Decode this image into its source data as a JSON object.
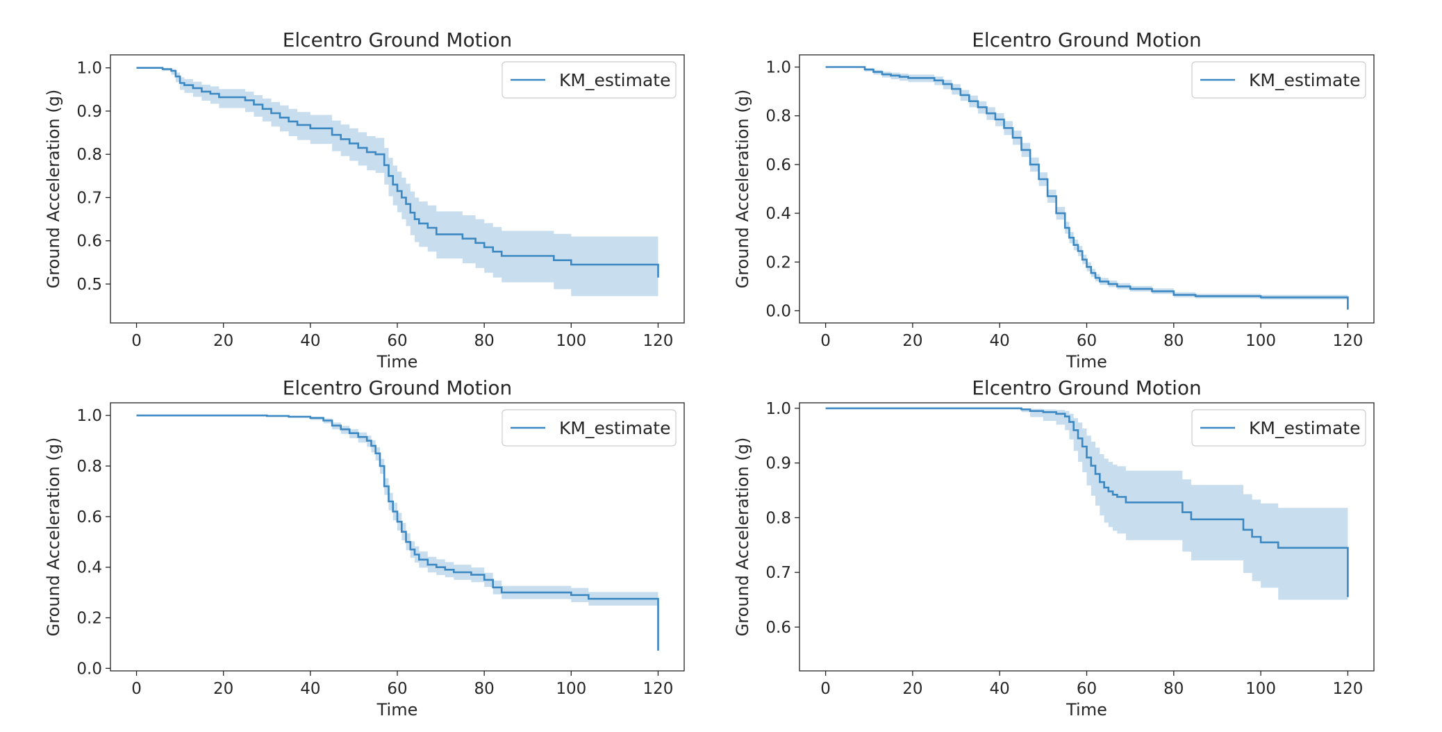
{
  "colors": {
    "line": "#3a87c1",
    "band": "#3a87c1",
    "axes": "#222222",
    "text": "#262626"
  },
  "chart_data": [
    {
      "type": "line",
      "title": "Elcentro Ground Motion",
      "xlabel": "Time",
      "ylabel": "Ground Acceleration (g)",
      "xlim": [
        -6,
        126
      ],
      "ylim": [
        0.41,
        1.03
      ],
      "xticks": [
        0,
        20,
        40,
        60,
        80,
        100,
        120
      ],
      "xtick_labels": [
        "0",
        "20",
        "40",
        "60",
        "80",
        "100",
        "120"
      ],
      "yticks": [
        0.5,
        0.6,
        0.7,
        0.8,
        0.9,
        1.0
      ],
      "ytick_labels": [
        "0.5",
        "0.6",
        "0.7",
        "0.8",
        "0.9",
        "1.0"
      ],
      "legend": {
        "position": "upper right",
        "entries": [
          "KM_estimate"
        ]
      },
      "series": [
        {
          "name": "KM_estimate",
          "step": true,
          "x": [
            0,
            6,
            8,
            9,
            10,
            11,
            13,
            15,
            17,
            19,
            25,
            27,
            29,
            31,
            33,
            35,
            37,
            40,
            45,
            47,
            49,
            51,
            53,
            55,
            57,
            58,
            59,
            60,
            61,
            62,
            63,
            64,
            65,
            67,
            69,
            75,
            78,
            80,
            82,
            84,
            96,
            100,
            120
          ],
          "y": [
            1.0,
            0.997,
            0.993,
            0.98,
            0.965,
            0.96,
            0.953,
            0.945,
            0.94,
            0.932,
            0.925,
            0.915,
            0.905,
            0.895,
            0.885,
            0.876,
            0.868,
            0.86,
            0.845,
            0.835,
            0.825,
            0.815,
            0.805,
            0.8,
            0.775,
            0.75,
            0.73,
            0.715,
            0.7,
            0.685,
            0.665,
            0.65,
            0.64,
            0.63,
            0.615,
            0.605,
            0.595,
            0.585,
            0.575,
            0.565,
            0.555,
            0.545,
            0.515
          ],
          "ci_lower": [
            1.0,
            0.993,
            0.984,
            0.967,
            0.949,
            0.942,
            0.933,
            0.924,
            0.917,
            0.907,
            0.898,
            0.887,
            0.876,
            0.864,
            0.853,
            0.842,
            0.833,
            0.824,
            0.807,
            0.796,
            0.785,
            0.774,
            0.763,
            0.757,
            0.73,
            0.703,
            0.682,
            0.666,
            0.65,
            0.634,
            0.613,
            0.597,
            0.586,
            0.575,
            0.559,
            0.548,
            0.537,
            0.526,
            0.515,
            0.504,
            0.488,
            0.472,
            0.44
          ],
          "ci_upper": [
            1.0,
            0.999,
            0.997,
            0.989,
            0.978,
            0.974,
            0.968,
            0.961,
            0.957,
            0.951,
            0.945,
            0.937,
            0.929,
            0.921,
            0.913,
            0.905,
            0.898,
            0.891,
            0.878,
            0.869,
            0.86,
            0.851,
            0.842,
            0.838,
            0.815,
            0.792,
            0.774,
            0.76,
            0.746,
            0.732,
            0.714,
            0.7,
            0.691,
            0.682,
            0.668,
            0.659,
            0.65,
            0.641,
            0.632,
            0.623,
            0.616,
            0.61,
            0.6
          ]
        }
      ]
    },
    {
      "type": "line",
      "title": "Elcentro Ground Motion",
      "xlabel": "Time",
      "ylabel": "Ground Acceleration (g)",
      "xlim": [
        -6,
        126
      ],
      "ylim": [
        -0.05,
        1.05
      ],
      "xticks": [
        0,
        20,
        40,
        60,
        80,
        100,
        120
      ],
      "xtick_labels": [
        "0",
        "20",
        "40",
        "60",
        "80",
        "100",
        "120"
      ],
      "yticks": [
        0.0,
        0.2,
        0.4,
        0.6,
        0.8,
        1.0
      ],
      "ytick_labels": [
        "0.0",
        "0.2",
        "0.4",
        "0.6",
        "0.8",
        "1.0"
      ],
      "legend": {
        "position": "upper right",
        "entries": [
          "KM_estimate"
        ]
      },
      "series": [
        {
          "name": "KM_estimate",
          "step": true,
          "x": [
            0,
            9,
            11,
            13,
            15,
            17,
            19,
            25,
            27,
            29,
            31,
            33,
            35,
            37,
            39,
            41,
            43,
            45,
            47,
            49,
            51,
            53,
            55,
            56,
            57,
            58,
            59,
            60,
            61,
            62,
            63,
            65,
            67,
            70,
            75,
            80,
            85,
            100,
            120
          ],
          "y": [
            1.0,
            0.99,
            0.98,
            0.97,
            0.965,
            0.96,
            0.955,
            0.945,
            0.93,
            0.91,
            0.885,
            0.86,
            0.835,
            0.81,
            0.785,
            0.75,
            0.71,
            0.66,
            0.6,
            0.54,
            0.47,
            0.4,
            0.34,
            0.3,
            0.27,
            0.245,
            0.21,
            0.18,
            0.155,
            0.135,
            0.12,
            0.11,
            0.1,
            0.09,
            0.08,
            0.065,
            0.06,
            0.055,
            0.005
          ],
          "ci_lower": [
            1.0,
            0.982,
            0.969,
            0.957,
            0.95,
            0.944,
            0.938,
            0.926,
            0.909,
            0.887,
            0.861,
            0.835,
            0.809,
            0.783,
            0.757,
            0.721,
            0.681,
            0.631,
            0.571,
            0.512,
            0.443,
            0.374,
            0.316,
            0.277,
            0.248,
            0.224,
            0.191,
            0.162,
            0.139,
            0.12,
            0.106,
            0.097,
            0.088,
            0.079,
            0.069,
            0.055,
            0.051,
            0.046,
            0.04
          ],
          "ci_upper": [
            1.0,
            0.995,
            0.988,
            0.981,
            0.977,
            0.973,
            0.969,
            0.961,
            0.948,
            0.93,
            0.906,
            0.883,
            0.859,
            0.835,
            0.811,
            0.778,
            0.739,
            0.689,
            0.629,
            0.568,
            0.497,
            0.426,
            0.365,
            0.323,
            0.292,
            0.266,
            0.23,
            0.199,
            0.172,
            0.151,
            0.135,
            0.124,
            0.113,
            0.102,
            0.092,
            0.076,
            0.07,
            0.065,
            0.06
          ]
        }
      ]
    },
    {
      "type": "line",
      "title": "Elcentro Ground Motion",
      "xlabel": "Time",
      "ylabel": "Ground Acceleration (g)",
      "xlim": [
        -6,
        126
      ],
      "ylim": [
        -0.01,
        1.05
      ],
      "xticks": [
        0,
        20,
        40,
        60,
        80,
        100,
        120
      ],
      "xtick_labels": [
        "0",
        "20",
        "40",
        "60",
        "80",
        "100",
        "120"
      ],
      "yticks": [
        0.0,
        0.2,
        0.4,
        0.6,
        0.8,
        1.0
      ],
      "ytick_labels": [
        "0.0",
        "0.2",
        "0.4",
        "0.6",
        "0.8",
        "1.0"
      ],
      "legend": {
        "position": "upper right",
        "entries": [
          "KM_estimate"
        ]
      },
      "series": [
        {
          "name": "KM_estimate",
          "step": true,
          "x": [
            0,
            30,
            35,
            40,
            43,
            45,
            47,
            49,
            51,
            53,
            54,
            55,
            56,
            57,
            58,
            59,
            60,
            61,
            62,
            63,
            64,
            65,
            67,
            69,
            71,
            73,
            77,
            80,
            82,
            84,
            100,
            104,
            120
          ],
          "y": [
            1.0,
            0.998,
            0.995,
            0.99,
            0.98,
            0.96,
            0.945,
            0.93,
            0.915,
            0.9,
            0.88,
            0.85,
            0.8,
            0.72,
            0.66,
            0.62,
            0.58,
            0.54,
            0.5,
            0.47,
            0.45,
            0.43,
            0.41,
            0.4,
            0.39,
            0.38,
            0.37,
            0.35,
            0.32,
            0.3,
            0.29,
            0.275,
            0.07
          ],
          "ci_lower": [
            1.0,
            0.995,
            0.99,
            0.982,
            0.969,
            0.945,
            0.927,
            0.91,
            0.893,
            0.876,
            0.854,
            0.822,
            0.769,
            0.686,
            0.625,
            0.585,
            0.545,
            0.506,
            0.467,
            0.437,
            0.418,
            0.398,
            0.379,
            0.369,
            0.36,
            0.35,
            0.341,
            0.322,
            0.293,
            0.274,
            0.262,
            0.248,
            0.05
          ],
          "ci_upper": [
            1.0,
            0.999,
            0.998,
            0.995,
            0.988,
            0.972,
            0.959,
            0.946,
            0.933,
            0.92,
            0.902,
            0.874,
            0.828,
            0.752,
            0.694,
            0.655,
            0.615,
            0.575,
            0.534,
            0.503,
            0.482,
            0.462,
            0.441,
            0.431,
            0.42,
            0.41,
            0.399,
            0.378,
            0.347,
            0.326,
            0.318,
            0.302,
            0.12
          ]
        }
      ]
    },
    {
      "type": "line",
      "title": "Elcentro Ground Motion",
      "xlabel": "Time",
      "ylabel": "Ground Acceleration (g)",
      "xlim": [
        -6,
        126
      ],
      "ylim": [
        0.52,
        1.01
      ],
      "xticks": [
        0,
        20,
        40,
        60,
        80,
        100,
        120
      ],
      "xtick_labels": [
        "0",
        "20",
        "40",
        "60",
        "80",
        "100",
        "120"
      ],
      "yticks": [
        0.6,
        0.7,
        0.8,
        0.9,
        1.0
      ],
      "ytick_labels": [
        "0.6",
        "0.7",
        "0.8",
        "0.9",
        "1.0"
      ],
      "legend": {
        "position": "upper right",
        "entries": [
          "KM_estimate"
        ]
      },
      "series": [
        {
          "name": "KM_estimate",
          "step": true,
          "x": [
            0,
            45,
            47,
            50,
            53,
            55,
            56,
            57,
            58,
            59,
            60,
            61,
            62,
            63,
            64,
            65,
            66,
            67,
            69,
            82,
            84,
            96,
            98,
            100,
            104,
            120
          ],
          "y": [
            1.0,
            0.998,
            0.995,
            0.993,
            0.99,
            0.985,
            0.975,
            0.96,
            0.945,
            0.93,
            0.91,
            0.895,
            0.88,
            0.865,
            0.855,
            0.848,
            0.842,
            0.838,
            0.828,
            0.81,
            0.797,
            0.778,
            0.765,
            0.755,
            0.745,
            0.655
          ],
          "ci_lower": [
            1.0,
            0.993,
            0.984,
            0.977,
            0.97,
            0.96,
            0.943,
            0.922,
            0.902,
            0.883,
            0.859,
            0.84,
            0.822,
            0.804,
            0.791,
            0.783,
            0.776,
            0.771,
            0.759,
            0.738,
            0.722,
            0.699,
            0.684,
            0.672,
            0.65,
            0.65
          ],
          "ci_upper": [
            1.0,
            1.0,
            0.999,
            0.998,
            0.997,
            0.995,
            0.99,
            0.982,
            0.974,
            0.963,
            0.95,
            0.939,
            0.928,
            0.916,
            0.908,
            0.902,
            0.897,
            0.894,
            0.886,
            0.87,
            0.86,
            0.843,
            0.833,
            0.826,
            0.818,
            0.818
          ]
        }
      ]
    }
  ]
}
